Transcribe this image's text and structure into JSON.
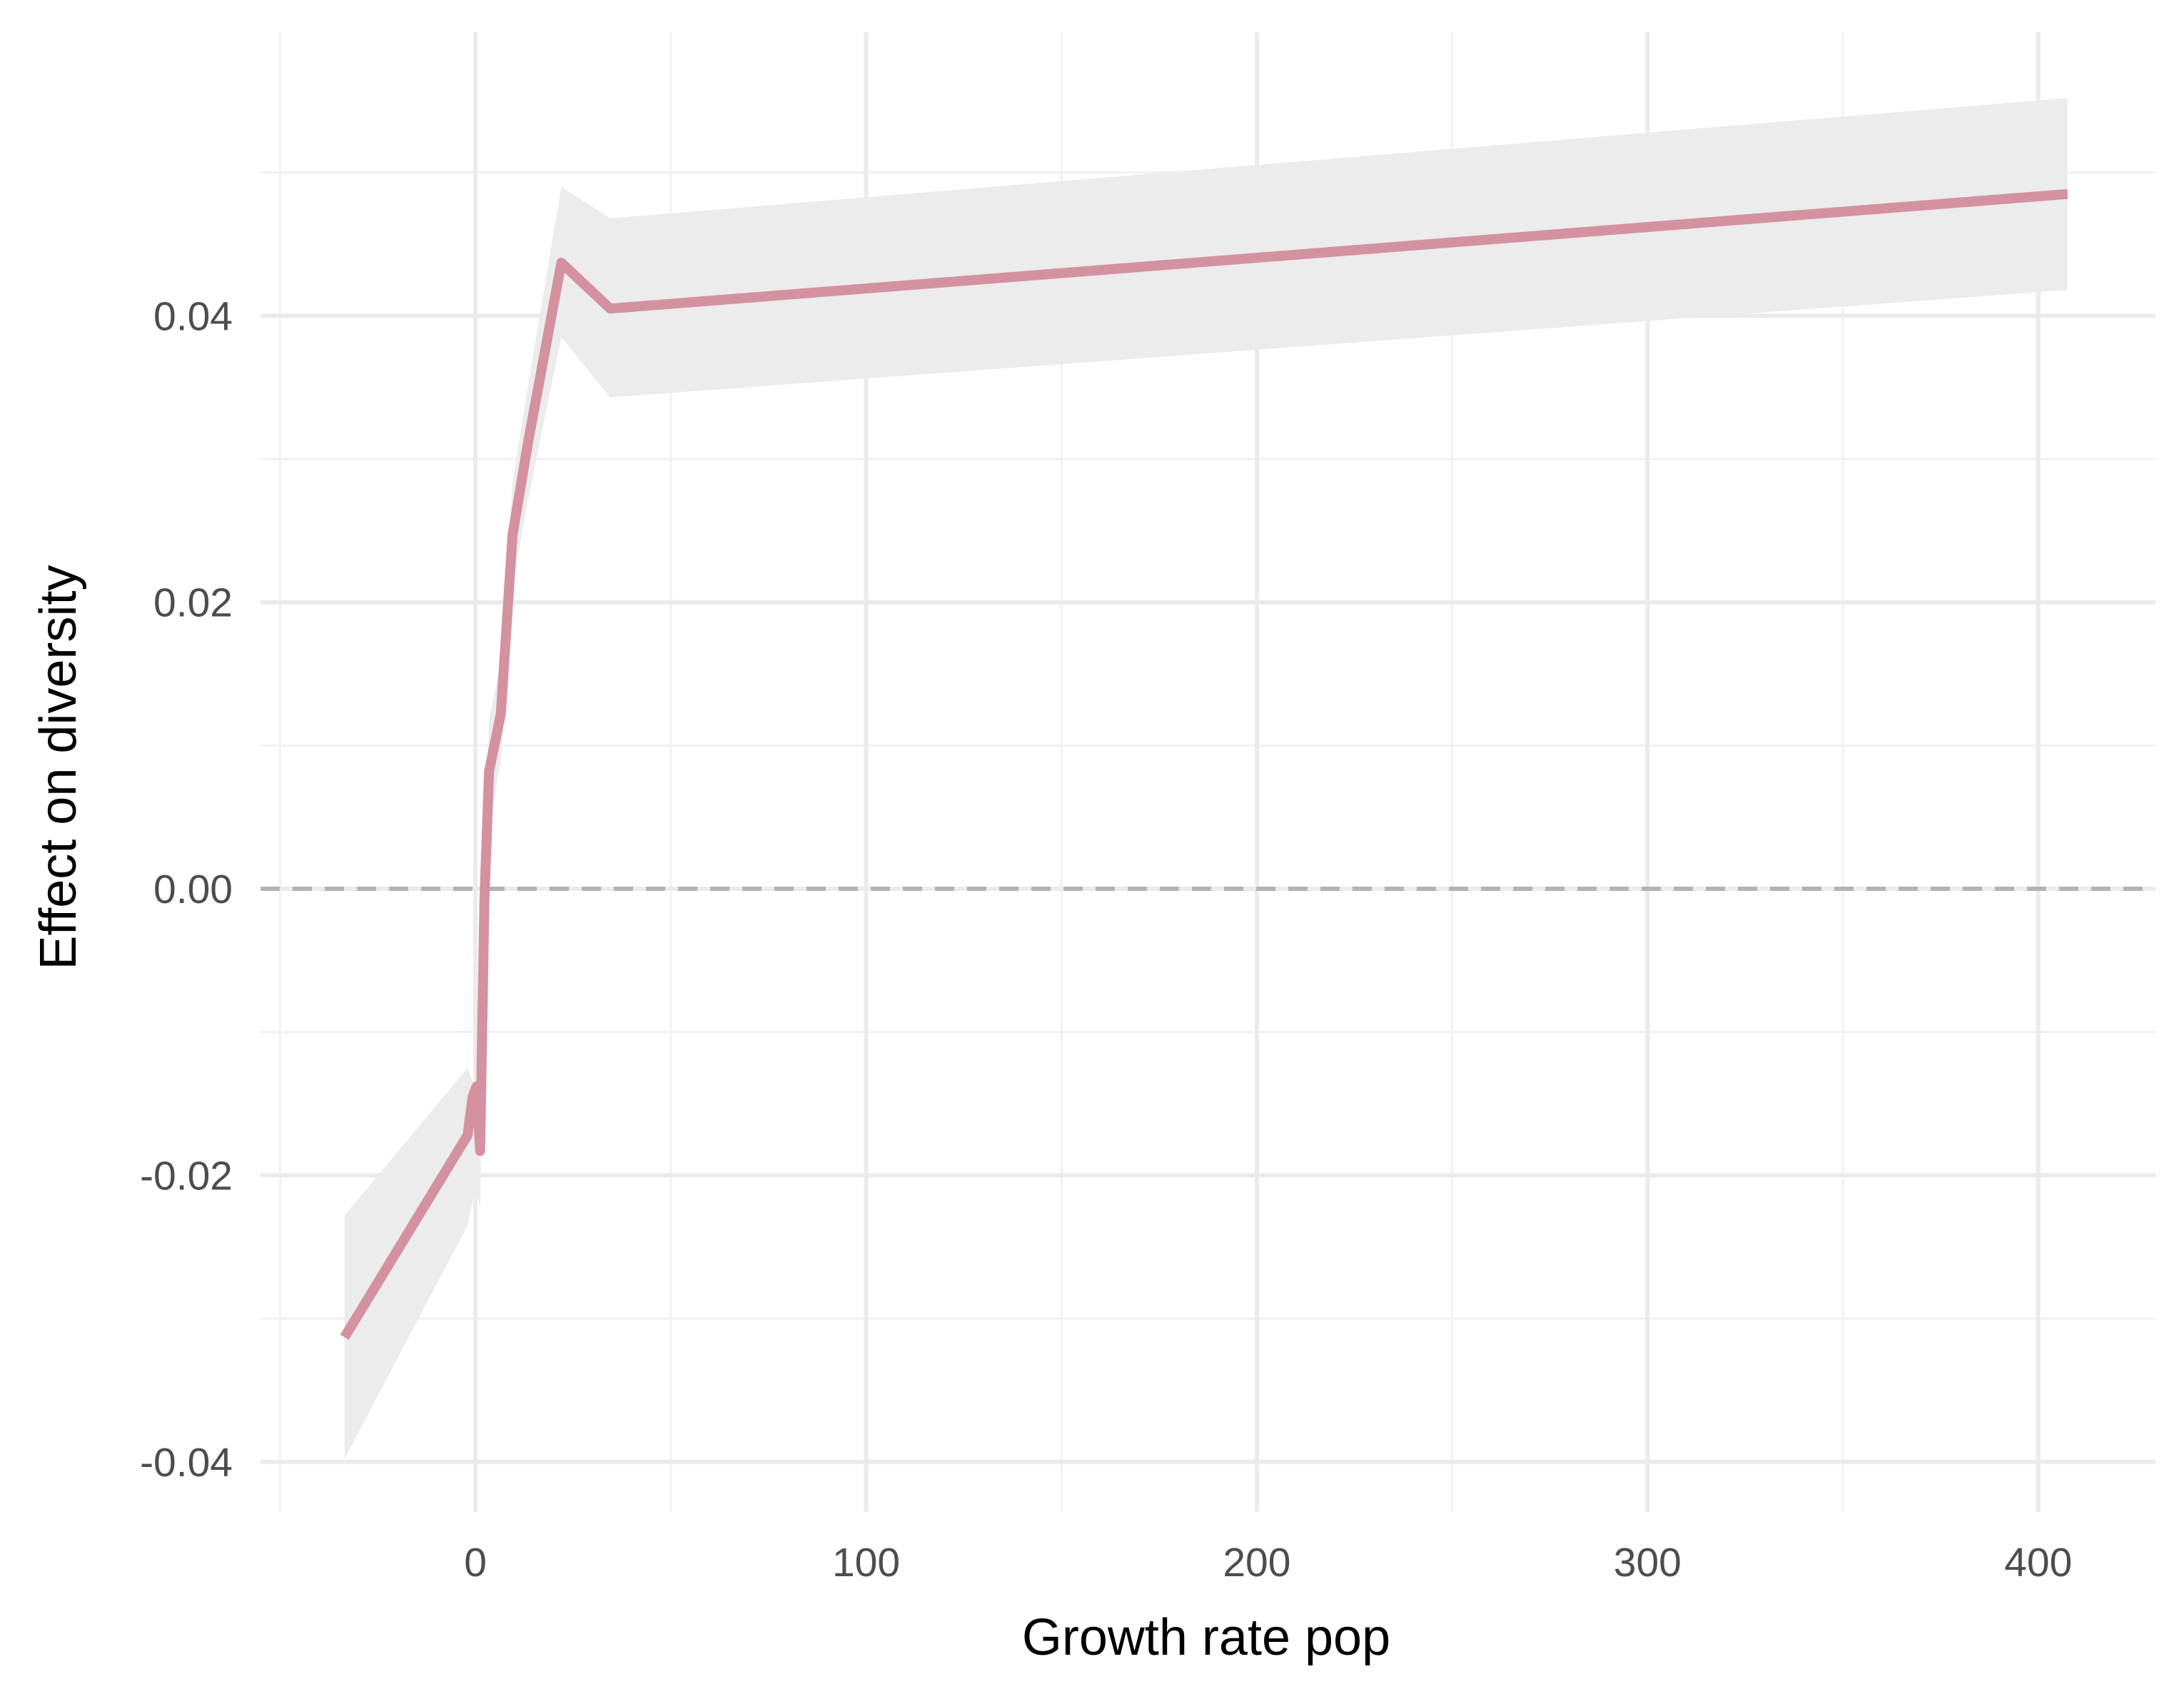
{
  "chart_data": {
    "type": "line",
    "title": "",
    "xlabel": "Growth rate pop",
    "ylabel": "Effect on diversity",
    "xlim": [
      -55,
      430
    ],
    "ylim": [
      -0.0435,
      0.0598
    ],
    "x_ticks": [
      0,
      100,
      200,
      300,
      400
    ],
    "x_tick_labels": [
      "0",
      "100",
      "200",
      "300",
      "400"
    ],
    "y_ticks": [
      -0.04,
      -0.02,
      0.0,
      0.02,
      0.04
    ],
    "y_tick_labels": [
      "-0.04",
      "-0.02",
      "0.00",
      "0.02",
      "0.04"
    ],
    "x_minor_ticks": [
      -50,
      50,
      150,
      250,
      350
    ],
    "y_minor_ticks": [
      -0.03,
      -0.01,
      0.01,
      0.03,
      0.05
    ],
    "grid": true,
    "reference_line": {
      "y": 0,
      "style": "dashed",
      "color": "#b3b3b3"
    },
    "series": [
      {
        "color": "#d4919f",
        "points": [
          {
            "x": -33.5,
            "y": -0.0313,
            "lower": -0.0398,
            "upper": -0.0228
          },
          {
            "x": -2,
            "y": -0.0172,
            "lower": -0.0235,
            "upper": -0.0125
          },
          {
            "x": -0.7,
            "y": -0.0145,
            "lower": -0.0218,
            "upper": -0.0135
          },
          {
            "x": 0.3,
            "y": -0.0138,
            "lower": -0.0212,
            "upper": -0.0128
          },
          {
            "x": 1.2,
            "y": -0.0183,
            "lower": -0.0222,
            "upper": -0.0148
          },
          {
            "x": 2.3,
            "y": -0.0008,
            "lower": -0.0045,
            "upper": 0.003
          },
          {
            "x": 3.5,
            "y": 0.0082,
            "lower": 0.0045,
            "upper": 0.0118
          },
          {
            "x": 6.5,
            "y": 0.0122,
            "lower": 0.0088,
            "upper": 0.0158
          },
          {
            "x": 9.5,
            "y": 0.0247,
            "lower": 0.0212,
            "upper": 0.0283
          },
          {
            "x": 13.5,
            "y": 0.0312,
            "lower": 0.0272,
            "upper": 0.0352
          },
          {
            "x": 22,
            "y": 0.0437,
            "lower": 0.0385,
            "upper": 0.049
          },
          {
            "x": 34.5,
            "y": 0.0405,
            "lower": 0.0343,
            "upper": 0.0468
          },
          {
            "x": 407.5,
            "y": 0.0485,
            "lower": 0.0418,
            "upper": 0.0552
          }
        ]
      }
    ]
  },
  "colors": {
    "background": "#ffffff",
    "grid_major": "#ebebeb",
    "grid_minor": "#f1f1f1",
    "ribbon": "#ececec",
    "line": "#d4919f",
    "reference": "#b3b3b3",
    "tick_text": "#4d4d4d",
    "title_text": "#000000"
  }
}
